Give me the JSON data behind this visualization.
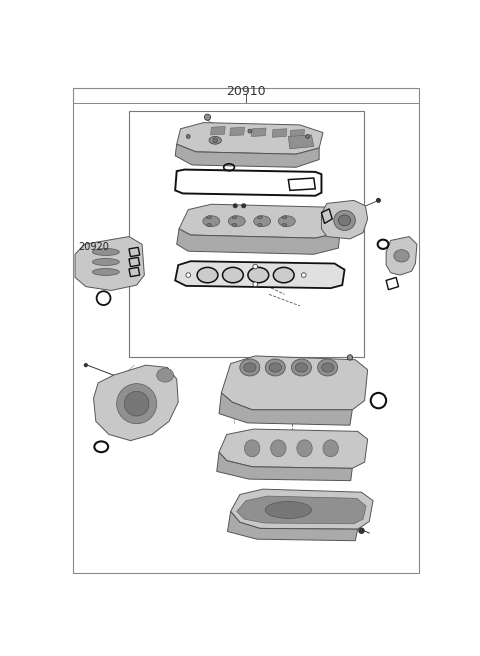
{
  "title": "20910",
  "label_20920": "20920",
  "bg_color": "#ffffff",
  "lc": "#555555",
  "dc": "#333333",
  "gc": "#111111",
  "pc": "#aaaaaa",
  "pc2": "#c8c8c8",
  "pc3": "#909090",
  "pc4": "#777777"
}
